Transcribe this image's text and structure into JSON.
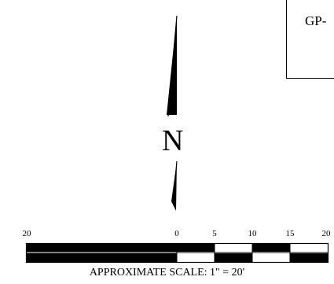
{
  "label_box": {
    "text": "GP-"
  },
  "north_arrow": {
    "letter": "N"
  },
  "scale_bar": {
    "ticks": [
      {
        "label": "20"
      },
      {
        "label": "0"
      },
      {
        "label": "5"
      },
      {
        "label": "10"
      },
      {
        "label": "15"
      },
      {
        "label": "20"
      }
    ],
    "caption": "APPROXIMATE SCALE: 1\" = 20'"
  }
}
